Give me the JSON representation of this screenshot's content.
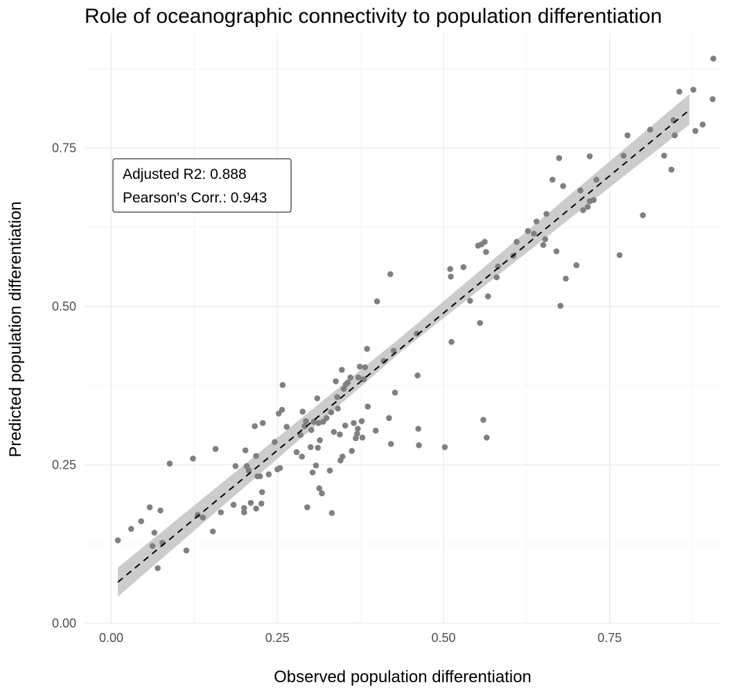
{
  "chart_data": {
    "type": "scatter",
    "title": "Role of oceanographic connectivity to population differentiation",
    "xlabel": "Observed population differentiation",
    "ylabel": "Predicted population differentiation",
    "xlim": [
      -0.0,
      0.9
    ],
    "ylim": [
      0.0,
      0.88
    ],
    "x_ticks": [
      0.0,
      0.25,
      0.5,
      0.75
    ],
    "x_tick_labels": [
      "0.00",
      "0.25",
      "0.50",
      "0.75"
    ],
    "y_ticks": [
      0.0,
      0.25,
      0.5,
      0.75
    ],
    "y_tick_labels": [
      "0.00",
      "0.25",
      "0.50",
      "0.75"
    ],
    "grid": true,
    "point_color": "#808080",
    "fit_line": {
      "style": "dashed",
      "color": "#000000",
      "x": [
        0.01,
        0.87
      ],
      "y": [
        0.065,
        0.81
      ]
    },
    "confidence_band": {
      "color": "#cccccc",
      "x": [
        0.01,
        0.44,
        0.87
      ],
      "lower": [
        0.042,
        0.432,
        0.787
      ],
      "upper": [
        0.088,
        0.455,
        0.835
      ]
    },
    "annotation": {
      "line1": "Adjusted R2: 0.888",
      "line2": "Pearson's Corr.: 0.943"
    },
    "points": [
      [
        0.01,
        0.131
      ],
      [
        0.03,
        0.149
      ],
      [
        0.045,
        0.161
      ],
      [
        0.058,
        0.183
      ],
      [
        0.062,
        0.122
      ],
      [
        0.065,
        0.143
      ],
      [
        0.07,
        0.087
      ],
      [
        0.074,
        0.178
      ],
      [
        0.077,
        0.127
      ],
      [
        0.088,
        0.252
      ],
      [
        0.113,
        0.115
      ],
      [
        0.123,
        0.26
      ],
      [
        0.13,
        0.171
      ],
      [
        0.138,
        0.167
      ],
      [
        0.153,
        0.145
      ],
      [
        0.157,
        0.275
      ],
      [
        0.165,
        0.175
      ],
      [
        0.184,
        0.187
      ],
      [
        0.187,
        0.248
      ],
      [
        0.2,
        0.175
      ],
      [
        0.2,
        0.182
      ],
      [
        0.202,
        0.273
      ],
      [
        0.204,
        0.248
      ],
      [
        0.207,
        0.241
      ],
      [
        0.21,
        0.19
      ],
      [
        0.216,
        0.311
      ],
      [
        0.218,
        0.264
      ],
      [
        0.218,
        0.181
      ],
      [
        0.22,
        0.232
      ],
      [
        0.224,
        0.232
      ],
      [
        0.226,
        0.189
      ],
      [
        0.227,
        0.207
      ],
      [
        0.228,
        0.316
      ],
      [
        0.237,
        0.235
      ],
      [
        0.246,
        0.286
      ],
      [
        0.25,
        0.243
      ],
      [
        0.252,
        0.331
      ],
      [
        0.254,
        0.245
      ],
      [
        0.257,
        0.337
      ],
      [
        0.258,
        0.376
      ],
      [
        0.264,
        0.31
      ],
      [
        0.279,
        0.27
      ],
      [
        0.285,
        0.297
      ],
      [
        0.287,
        0.263
      ],
      [
        0.288,
        0.334
      ],
      [
        0.291,
        0.311
      ],
      [
        0.293,
        0.319
      ],
      [
        0.295,
        0.183
      ],
      [
        0.3,
        0.278
      ],
      [
        0.301,
        0.305
      ],
      [
        0.303,
        0.238
      ],
      [
        0.305,
        0.318
      ],
      [
        0.308,
        0.249
      ],
      [
        0.31,
        0.355
      ],
      [
        0.311,
        0.277
      ],
      [
        0.312,
        0.316
      ],
      [
        0.313,
        0.213
      ],
      [
        0.314,
        0.289
      ],
      [
        0.317,
        0.205
      ],
      [
        0.319,
        0.318
      ],
      [
        0.324,
        0.324
      ],
      [
        0.329,
        0.241
      ],
      [
        0.331,
        0.333
      ],
      [
        0.332,
        0.174
      ],
      [
        0.335,
        0.302
      ],
      [
        0.338,
        0.382
      ],
      [
        0.34,
        0.357
      ],
      [
        0.341,
        0.339
      ],
      [
        0.344,
        0.298
      ],
      [
        0.345,
        0.257
      ],
      [
        0.347,
        0.4
      ],
      [
        0.348,
        0.263
      ],
      [
        0.35,
        0.37
      ],
      [
        0.352,
        0.312
      ],
      [
        0.353,
        0.377
      ],
      [
        0.356,
        0.38
      ],
      [
        0.36,
        0.388
      ],
      [
        0.362,
        0.272
      ],
      [
        0.365,
        0.316
      ],
      [
        0.368,
        0.292
      ],
      [
        0.37,
        0.299
      ],
      [
        0.371,
        0.307
      ],
      [
        0.372,
        0.388
      ],
      [
        0.374,
        0.405
      ],
      [
        0.377,
        0.319
      ],
      [
        0.378,
        0.293
      ],
      [
        0.38,
        0.385
      ],
      [
        0.382,
        0.404
      ],
      [
        0.385,
        0.433
      ],
      [
        0.386,
        0.342
      ],
      [
        0.398,
        0.304
      ],
      [
        0.4,
        0.508
      ],
      [
        0.41,
        0.414
      ],
      [
        0.418,
        0.324
      ],
      [
        0.42,
        0.551
      ],
      [
        0.421,
        0.283
      ],
      [
        0.425,
        0.43
      ],
      [
        0.427,
        0.364
      ],
      [
        0.46,
        0.457
      ],
      [
        0.461,
        0.391
      ],
      [
        0.462,
        0.307
      ],
      [
        0.463,
        0.281
      ],
      [
        0.502,
        0.278
      ],
      [
        0.51,
        0.559
      ],
      [
        0.511,
        0.547
      ],
      [
        0.512,
        0.444
      ],
      [
        0.53,
        0.562
      ],
      [
        0.54,
        0.509
      ],
      [
        0.552,
        0.596
      ],
      [
        0.555,
        0.474
      ],
      [
        0.557,
        0.598
      ],
      [
        0.562,
        0.602
      ],
      [
        0.564,
        0.586
      ],
      [
        0.565,
        0.293
      ],
      [
        0.567,
        0.516
      ],
      [
        0.58,
        0.546
      ],
      [
        0.582,
        0.563
      ],
      [
        0.605,
        0.58
      ],
      [
        0.61,
        0.602
      ],
      [
        0.627,
        0.619
      ],
      [
        0.636,
        0.615
      ],
      [
        0.64,
        0.634
      ],
      [
        0.65,
        0.597
      ],
      [
        0.653,
        0.606
      ],
      [
        0.655,
        0.646
      ],
      [
        0.664,
        0.7
      ],
      [
        0.67,
        0.587
      ],
      [
        0.674,
        0.734
      ],
      [
        0.676,
        0.501
      ],
      [
        0.68,
        0.69
      ],
      [
        0.684,
        0.544
      ],
      [
        0.7,
        0.565
      ],
      [
        0.706,
        0.683
      ],
      [
        0.71,
        0.652
      ],
      [
        0.717,
        0.657
      ],
      [
        0.72,
        0.737
      ],
      [
        0.72,
        0.666
      ],
      [
        0.726,
        0.668
      ],
      [
        0.73,
        0.7
      ],
      [
        0.765,
        0.581
      ],
      [
        0.771,
        0.738
      ],
      [
        0.777,
        0.77
      ],
      [
        0.8,
        0.644
      ],
      [
        0.811,
        0.779
      ],
      [
        0.832,
        0.738
      ],
      [
        0.843,
        0.716
      ],
      [
        0.846,
        0.794
      ],
      [
        0.848,
        0.77
      ],
      [
        0.855,
        0.839
      ],
      [
        0.876,
        0.842
      ],
      [
        0.879,
        0.777
      ],
      [
        0.89,
        0.787
      ],
      [
        0.905,
        0.827
      ],
      [
        0.906,
        0.891
      ],
      [
        0.56,
        0.321
      ]
    ]
  }
}
